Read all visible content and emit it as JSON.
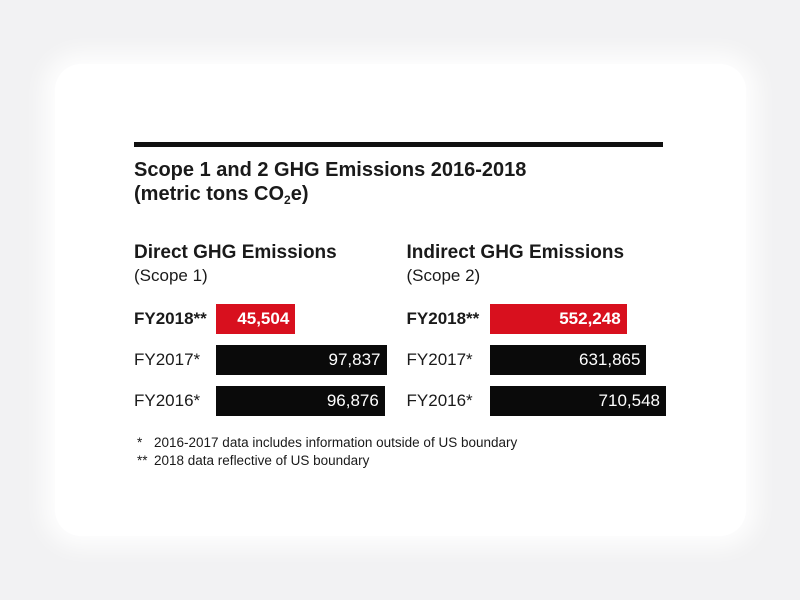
{
  "colors": {
    "background": "#f2f2f3",
    "card": "#ffffff",
    "highlight_bar": "#d8101e",
    "bar": "#0a0a0a",
    "text": "#1a1a1a"
  },
  "header": {
    "title_line1": "Scope 1 and 2 GHG Emissions 2016-2018",
    "title_line2_prefix": "(metric tons CO",
    "title_line2_sub": "2",
    "title_line2_suffix": "e)"
  },
  "charts": [
    {
      "title": "Direct GHG Emissions",
      "subtitle": "(Scope 1)",
      "rows": [
        {
          "label": "FY2018**",
          "value": "45,504"
        },
        {
          "label": "FY2017*",
          "value": "97,837"
        },
        {
          "label": "FY2016*",
          "value": "96,876"
        }
      ]
    },
    {
      "title": "Indirect GHG Emissions",
      "subtitle": "(Scope 2)",
      "rows": [
        {
          "label": "FY2018**",
          "value": "552,248"
        },
        {
          "label": "FY2017*",
          "value": "631,865"
        },
        {
          "label": "FY2016*",
          "value": "710,548"
        }
      ]
    }
  ],
  "footnotes": [
    {
      "marker": "*",
      "text": "2016-2017 data includes information outside of US boundary"
    },
    {
      "marker": "**",
      "text": "2018 data reflective of US boundary"
    }
  ],
  "chart_data": [
    {
      "type": "bar",
      "orientation": "horizontal",
      "title": "Direct GHG Emissions (Scope 1)",
      "unit": "metric tons CO2e",
      "categories": [
        "FY2018**",
        "FY2017*",
        "FY2016*"
      ],
      "values": [
        45504,
        97837,
        96876
      ],
      "value_labels": [
        "45,504",
        "97,837",
        "96,876"
      ],
      "bar_colors": [
        "#d8101e",
        "#0a0a0a",
        "#0a0a0a"
      ],
      "xlim": [
        0,
        97837
      ],
      "grid": false,
      "legend": false
    },
    {
      "type": "bar",
      "orientation": "horizontal",
      "title": "Indirect GHG Emissions (Scope 2)",
      "unit": "metric tons CO2e",
      "categories": [
        "FY2018**",
        "FY2017*",
        "FY2016*"
      ],
      "values": [
        552248,
        631865,
        710548
      ],
      "value_labels": [
        "552,248",
        "631,865",
        "710,548"
      ],
      "bar_colors": [
        "#d8101e",
        "#0a0a0a",
        "#0a0a0a"
      ],
      "xlim": [
        0,
        710548
      ],
      "grid": false,
      "legend": false
    }
  ]
}
